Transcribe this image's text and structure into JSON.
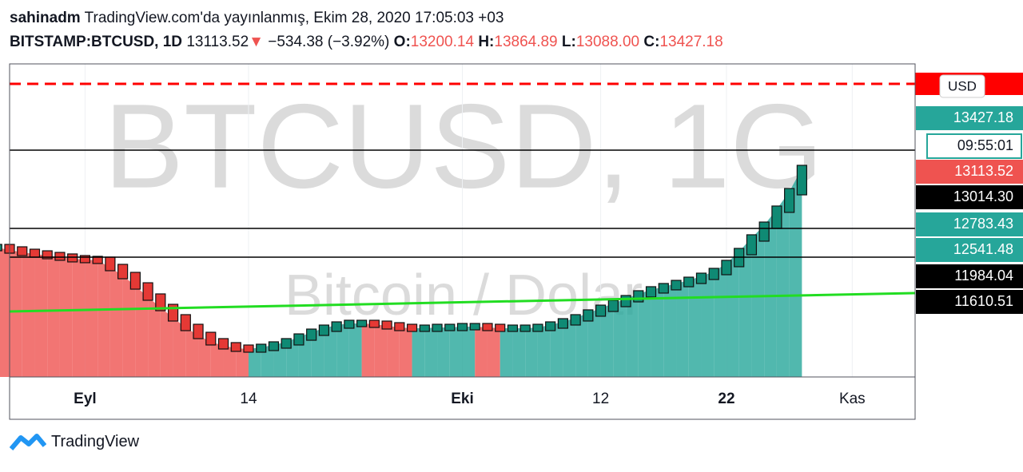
{
  "header": {
    "author": "sahinadm",
    "published": "TradingView.com'da yayınlanmış, Ekim 28, 2020 17:05:03 +03",
    "symbol": "BITSTAMP:BTCUSD, 1D",
    "last": "13113.52",
    "arrow": "▼",
    "change": "−534.38 (−3.92%)",
    "o_label": "O:",
    "open": "13200.14",
    "h_label": "H:",
    "high": "13864.89",
    "l_label": "L:",
    "low": "13088.00",
    "c_label": "C:",
    "close": "13427.18"
  },
  "watermark": {
    "line1": "BTCUSD, 1G",
    "line2": "Bitcoin / Dolar"
  },
  "currency": "USD",
  "price_labels": [
    {
      "text": "13427.18",
      "color": "#26a69a"
    },
    {
      "text": "09:55:01",
      "color": "#26a69a"
    },
    {
      "text": "13113.52",
      "color": "#ef5350"
    },
    {
      "text": "13014.30",
      "color": "#000000"
    },
    {
      "text": "12783.43",
      "color": "#26a69a"
    },
    {
      "text": "12541.48",
      "color": "#26a69a"
    },
    {
      "text": "11984.04",
      "color": "#000000"
    },
    {
      "text": "11610.51",
      "color": "#000000"
    }
  ],
  "footer": {
    "brand": "TradingView"
  },
  "chart_data": {
    "type": "linebreak",
    "x": [
      -7,
      -6,
      -5,
      -4,
      -3,
      -2,
      -1,
      0,
      1,
      2,
      3,
      4,
      5,
      6,
      7,
      8,
      9,
      10,
      11,
      12,
      13,
      14,
      15,
      16,
      17,
      18,
      19,
      20,
      21,
      22,
      23,
      24,
      25,
      26,
      27,
      28,
      29,
      30,
      31,
      32,
      33,
      34,
      35,
      36,
      37,
      38,
      39,
      40,
      41,
      42,
      43,
      44,
      45,
      46,
      47,
      48,
      49,
      50,
      51,
      52,
      53,
      54,
      55,
      56,
      57
    ],
    "values": [
      12027,
      11994,
      11961,
      11939,
      11917,
      11896,
      11874,
      11863,
      11852,
      11753,
      11643,
      11500,
      11347,
      11204,
      11062,
      10930,
      10820,
      10733,
      10678,
      10645,
      10634,
      10656,
      10689,
      10733,
      10798,
      10864,
      10919,
      10963,
      10985,
      10985,
      10974,
      10952,
      10930,
      10919,
      10919,
      10930,
      10930,
      10941,
      10941,
      10930,
      10919,
      10919,
      10919,
      10930,
      10963,
      11007,
      11062,
      11128,
      11193,
      11259,
      11325,
      11391,
      11446,
      11490,
      11533,
      11577,
      11632,
      11698,
      11808,
      11972,
      12159,
      12334,
      12554,
      12795,
      13113
    ],
    "up_color": "#26a69a",
    "down_color": "#ef5350",
    "xlim": [
      -6,
      66
    ],
    "ylim": [
      10250,
      14550
    ],
    "xticks": [
      {
        "value": 0,
        "label": "Eyl"
      },
      {
        "value": 13,
        "label": "14"
      },
      {
        "value": 30,
        "label": "Eki"
      },
      {
        "value": 41,
        "label": "12"
      },
      {
        "value": 51,
        "label": "22"
      },
      {
        "value": 61,
        "label": "Kas"
      }
    ],
    "ma_line": {
      "color": "#22dd22",
      "x": [
        -6,
        66
      ],
      "values": [
        11150,
        11402
      ]
    },
    "hlines": [
      13365,
      12290,
      11896
    ],
    "alert_line": {
      "color": "#ff0000",
      "value": 14276
    }
  }
}
